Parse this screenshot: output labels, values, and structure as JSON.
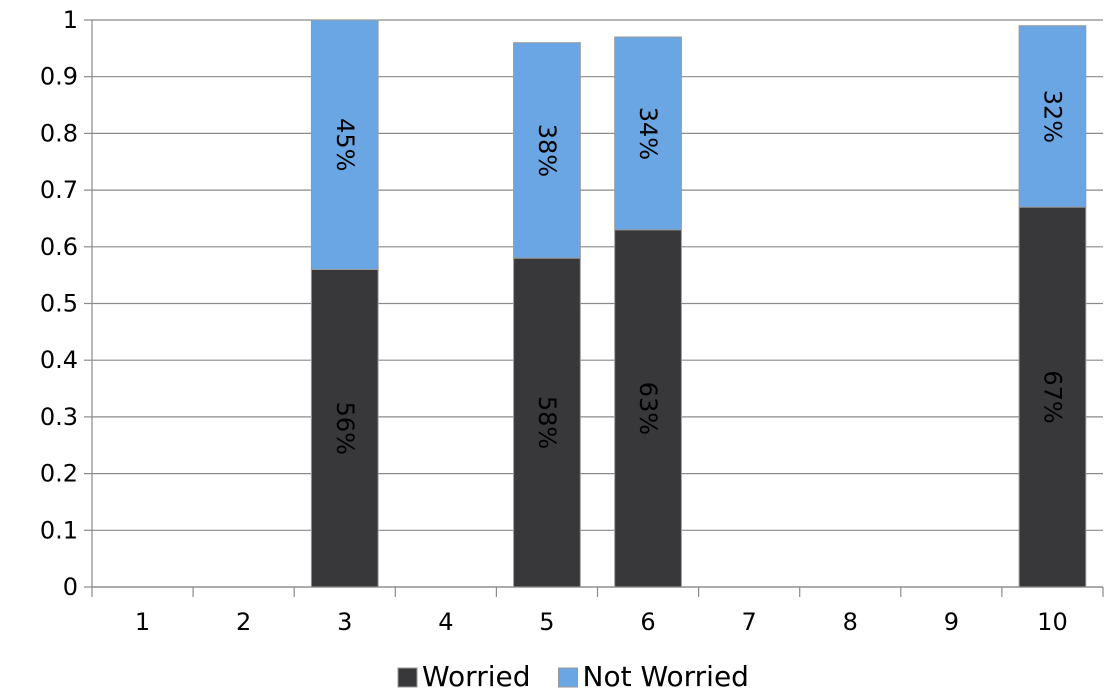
{
  "chart_data": {
    "type": "bar",
    "stacked": true,
    "categories": [
      "1",
      "2",
      "3",
      "4",
      "5",
      "6",
      "7",
      "8",
      "9",
      "10"
    ],
    "series": [
      {
        "name": "Worried",
        "color": "#38383b",
        "values": [
          0,
          0,
          0.56,
          0,
          0.58,
          0.63,
          0,
          0,
          0,
          0.67
        ],
        "labels": [
          "",
          "",
          "56%",
          "",
          "58%",
          "63%",
          "",
          "",
          "",
          "67%"
        ]
      },
      {
        "name": "Not Worried",
        "color": "#6aa6e4",
        "values": [
          0,
          0,
          0.45,
          0,
          0.38,
          0.34,
          0,
          0,
          0,
          0.32
        ],
        "labels": [
          "",
          "",
          "45%",
          "",
          "38%",
          "34%",
          "",
          "",
          "",
          "32%"
        ]
      }
    ],
    "ylim": [
      0,
      1
    ],
    "yticks": [
      0,
      0.1,
      0.2,
      0.3,
      0.4,
      0.5,
      0.6,
      0.7,
      0.8,
      0.9,
      1
    ],
    "ytick_labels": [
      "0",
      "0.1",
      "0.2",
      "0.3",
      "0.4",
      "0.5",
      "0.6",
      "0.7",
      "0.8",
      "0.9",
      "1"
    ],
    "grid": true,
    "legend_position": "bottom",
    "title": "",
    "xlabel": "",
    "ylabel": ""
  }
}
